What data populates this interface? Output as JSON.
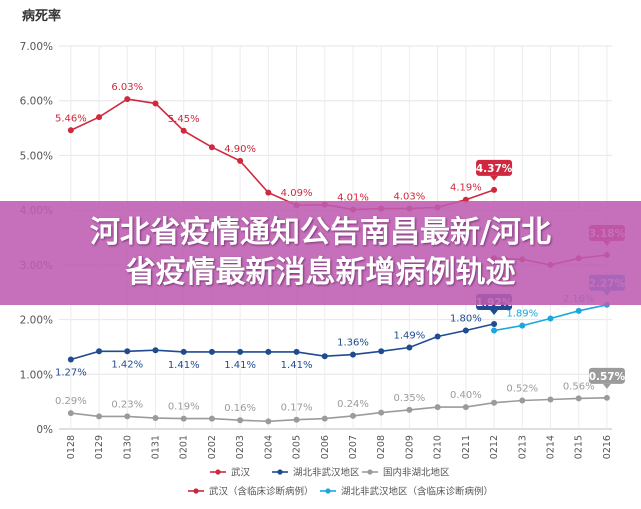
{
  "overlay": {
    "line1": "河北省疫情通知公告南昌最新/河北",
    "line2": "省疫情最新消息新增病例轨迹"
  },
  "chart_data": {
    "type": "line",
    "title": "病死率",
    "categories": [
      "0128",
      "0129",
      "0130",
      "0131",
      "0201",
      "0202",
      "0203",
      "0204",
      "0205",
      "0206",
      "0207",
      "0208",
      "0209",
      "0210",
      "0211",
      "0212",
      "0213",
      "0214",
      "0215",
      "0216"
    ],
    "ylim": [
      0,
      7
    ],
    "yticks": [
      "0%",
      "1.00%",
      "2.00%",
      "3.00%",
      "4.00%",
      "5.00%",
      "6.00%",
      "7.00%"
    ],
    "grid": true,
    "legend_position": "bottom",
    "series": [
      {
        "name": "武汉",
        "color": "#d0283e",
        "values": [
          5.46,
          5.7,
          6.03,
          5.95,
          5.45,
          5.15,
          4.9,
          4.32,
          4.09,
          4.1,
          4.01,
          4.03,
          4.03,
          4.05,
          4.19,
          4.37,
          null,
          null,
          null,
          null
        ],
        "labels": {
          "0": "5.46%",
          "2": "6.03%",
          "4": "5.45%",
          "6": "4.90%",
          "8": "4.09%",
          "10": "4.01%",
          "12": "4.03%",
          "14": "4.19%",
          "15": "4.37%"
        }
      },
      {
        "name": "湖北非武汉地区",
        "color": "#1f4b8f",
        "values": [
          1.27,
          1.42,
          1.42,
          1.44,
          1.41,
          1.41,
          1.41,
          1.41,
          1.41,
          1.33,
          1.36,
          1.42,
          1.49,
          1.69,
          1.8,
          1.92,
          null,
          null,
          null,
          null
        ],
        "labels": {
          "0": "1.27%",
          "2": "1.42%",
          "4": "1.41%",
          "6": "1.41%",
          "8": "1.41%",
          "10": "1.36%",
          "12": "1.49%",
          "14": "1.80%",
          "15": "1.92%"
        }
      },
      {
        "name": "国内非湖北地区",
        "color": "#9b9b9b",
        "values": [
          0.29,
          0.23,
          0.23,
          0.2,
          0.19,
          0.19,
          0.16,
          0.14,
          0.17,
          0.19,
          0.24,
          0.3,
          0.35,
          0.4,
          0.4,
          0.48,
          0.52,
          0.54,
          0.56,
          0.57
        ],
        "labels": {
          "0": "0.29%",
          "2": "0.23%",
          "4": "0.19%",
          "6": "0.16%",
          "8": "0.17%",
          "10": "0.24%",
          "12": "0.35%",
          "14": "0.40%",
          "16": "0.52%",
          "18": "0.56%",
          "19": "0.57%"
        }
      },
      {
        "name": "武汉（含临床诊断病例）",
        "color": "#c8283c",
        "values": [
          null,
          null,
          null,
          null,
          null,
          null,
          null,
          null,
          null,
          null,
          null,
          null,
          null,
          null,
          null,
          3.12,
          3.1,
          3.0,
          3.12,
          3.18
        ],
        "labels": {
          "19": "3.18%"
        }
      },
      {
        "name": "湖北非武汉地区（含临床诊断病例）",
        "color": "#1aa7e0",
        "values": [
          null,
          null,
          null,
          null,
          null,
          null,
          null,
          null,
          null,
          null,
          null,
          null,
          null,
          null,
          null,
          1.8,
          1.89,
          2.02,
          2.16,
          2.27
        ],
        "labels": {
          "16": "1.89%",
          "18": "2.16%",
          "19": "2.27%"
        }
      }
    ],
    "badges": [
      {
        "series": 0,
        "index": 15,
        "text": "4.37%"
      },
      {
        "series": 1,
        "index": 15,
        "text": "1.92%"
      },
      {
        "series": 3,
        "index": 19,
        "text": "3.18%"
      },
      {
        "series": 4,
        "index": 19,
        "text": "2.27%"
      },
      {
        "series": 2,
        "index": 19,
        "text": "0.57%"
      }
    ]
  }
}
